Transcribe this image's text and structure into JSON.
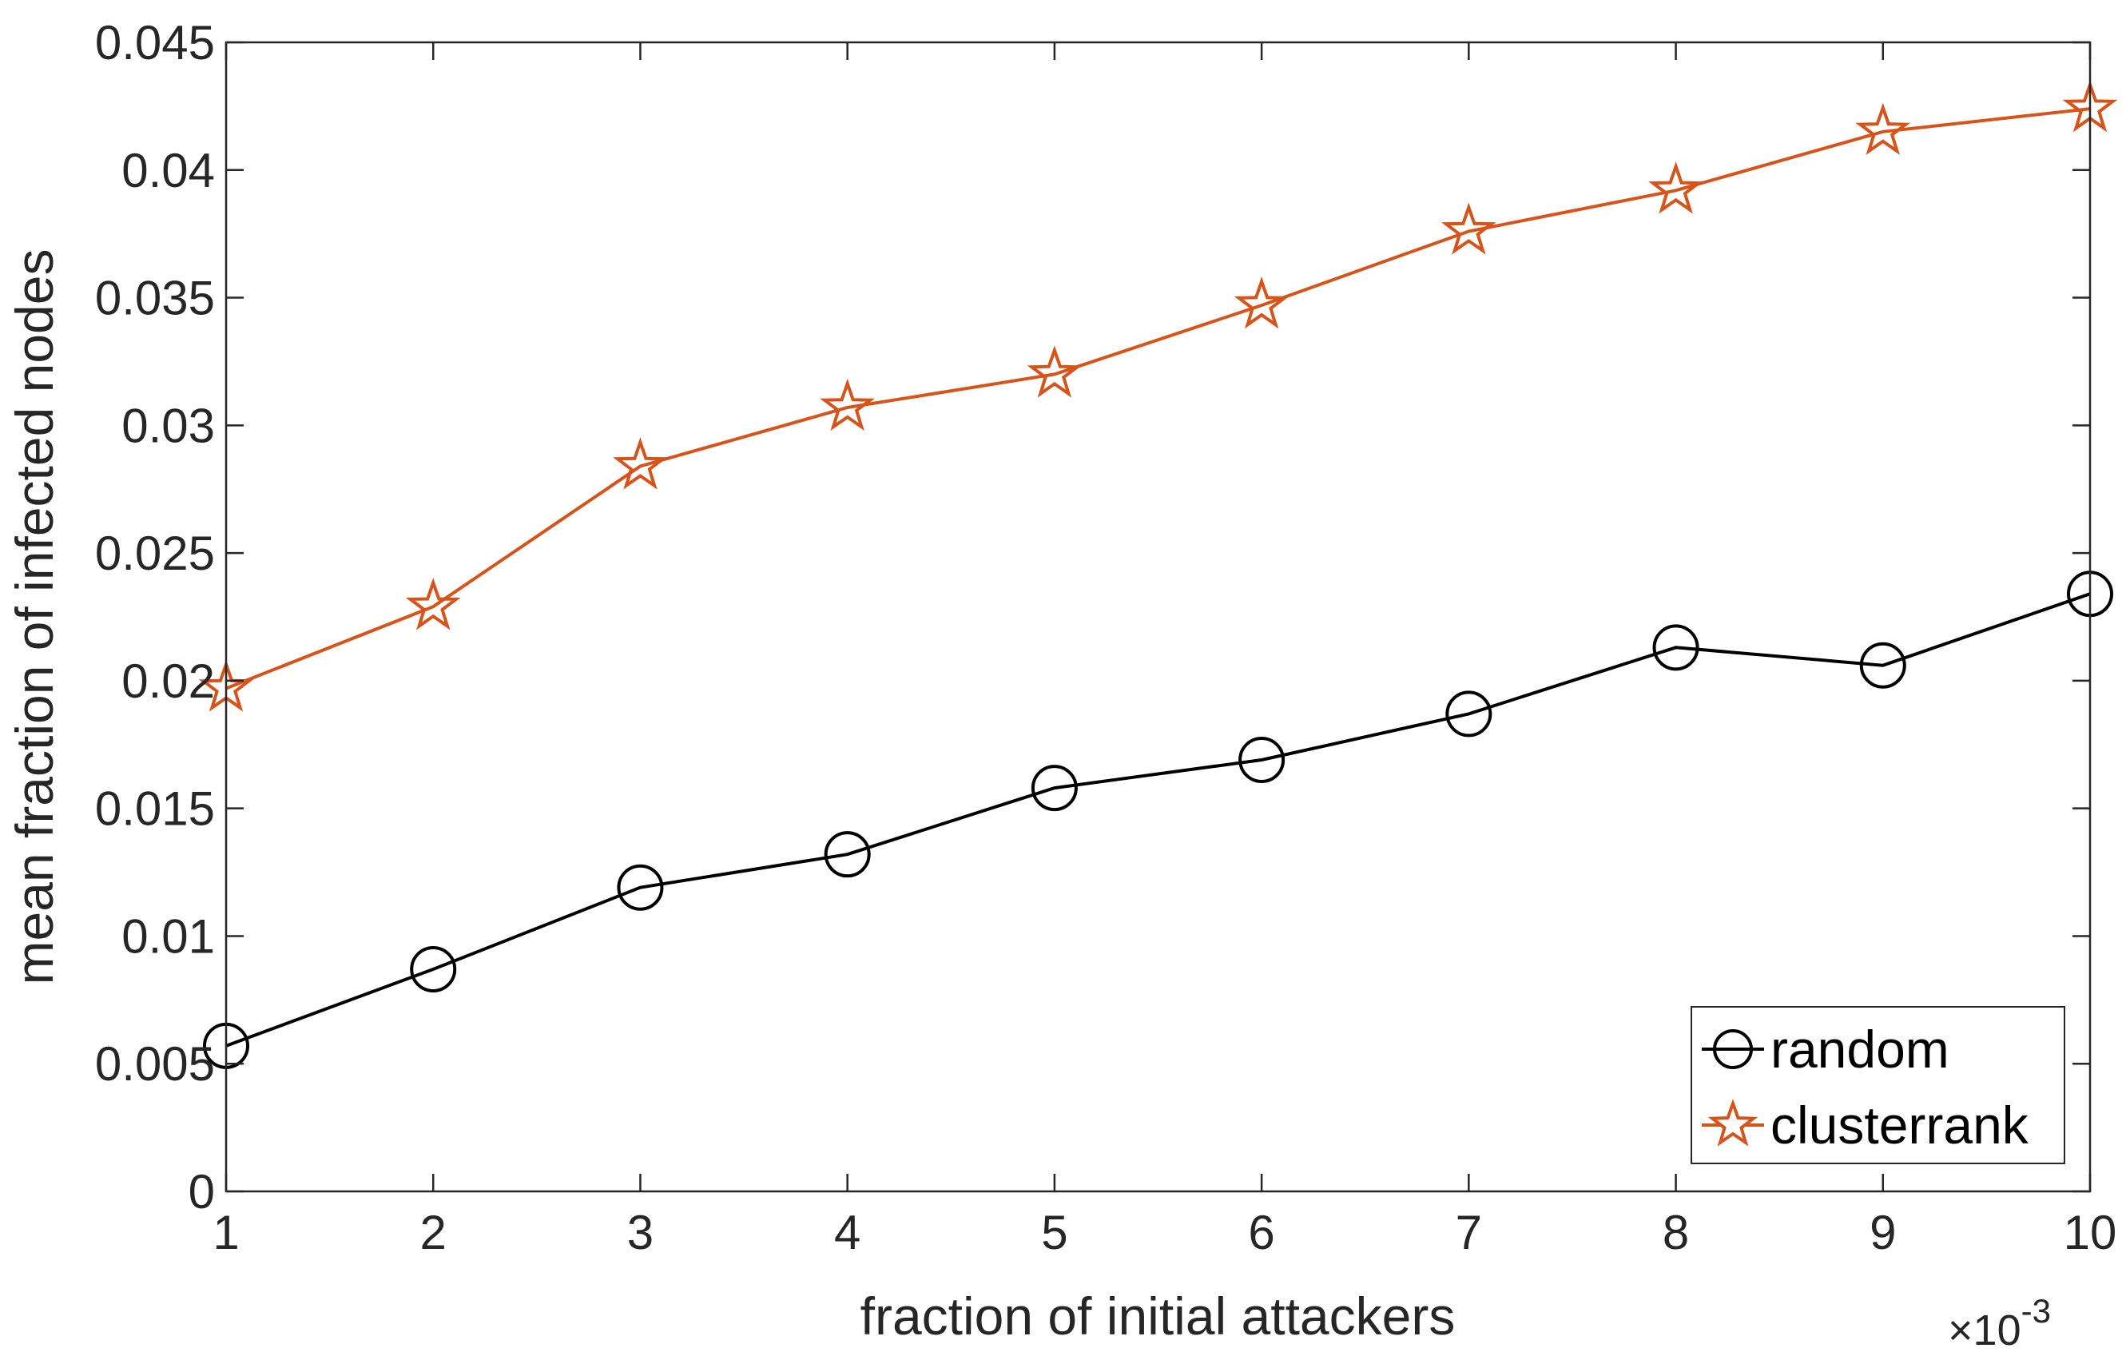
{
  "chart_data": {
    "type": "line",
    "title": "",
    "xlabel": "fraction of initial attackers",
    "ylabel": "mean fraction of infected nodes",
    "x_exponent_label": {
      "base": "×10",
      "exponent": "-3"
    },
    "x": [
      1,
      2,
      3,
      4,
      5,
      6,
      7,
      8,
      9,
      10
    ],
    "xlim": [
      1,
      10
    ],
    "ylim": [
      0,
      0.045
    ],
    "x_ticks": [
      1,
      2,
      3,
      4,
      5,
      6,
      7,
      8,
      9,
      10
    ],
    "x_tick_labels": [
      "1",
      "2",
      "3",
      "4",
      "5",
      "6",
      "7",
      "8",
      "9",
      "10"
    ],
    "y_ticks": [
      0,
      0.005,
      0.01,
      0.015,
      0.02,
      0.025,
      0.03,
      0.035,
      0.04,
      0.045
    ],
    "y_tick_labels": [
      "0",
      "0.005",
      "0.01",
      "0.015",
      "0.02",
      "0.025",
      "0.03",
      "0.035",
      "0.04",
      "0.045"
    ],
    "grid": false,
    "legend_position": "bottom-right",
    "series": [
      {
        "name": "random",
        "marker": "circle",
        "color": "#000000",
        "values": [
          0.0057,
          0.0087,
          0.0119,
          0.0132,
          0.0158,
          0.0169,
          0.0187,
          0.0213,
          0.0206,
          0.0234
        ]
      },
      {
        "name": "clusterrank",
        "marker": "star",
        "color": "#D95319",
        "values": [
          0.0197,
          0.0229,
          0.0284,
          0.0307,
          0.032,
          0.0347,
          0.0376,
          0.0392,
          0.0415,
          0.0424
        ]
      }
    ]
  }
}
